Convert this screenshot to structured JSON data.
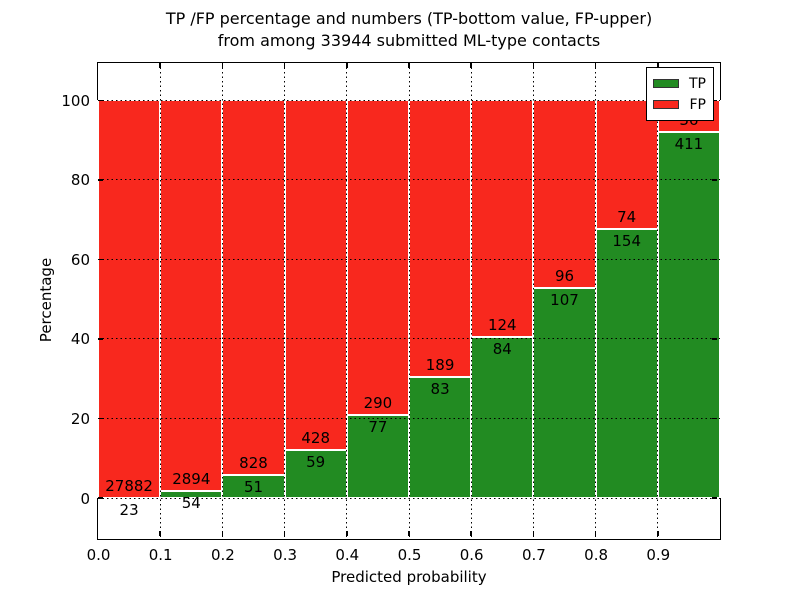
{
  "chart_data": {
    "type": "bar",
    "subtype": "stacked-percentage-histogram",
    "title_line1": "TP /FP percentage and numbers (TP-bottom value, FP-upper)",
    "title_line2": "from among 33944 submitted ML-type contacts",
    "xlabel": "Predicted probability",
    "ylabel": "Percentage",
    "total_submitted": 33944,
    "bin_width": 0.1,
    "categories": [
      0.0,
      0.1,
      0.2,
      0.3,
      0.4,
      0.5,
      0.6,
      0.7,
      0.8,
      0.9
    ],
    "series": [
      {
        "name": "TP",
        "color": "#228b22",
        "values": [
          23,
          54,
          51,
          59,
          77,
          83,
          84,
          107,
          154,
          411
        ]
      },
      {
        "name": "FP",
        "color": "#f8281e",
        "values": [
          27882,
          2894,
          828,
          428,
          290,
          189,
          124,
          96,
          74,
          36
        ]
      }
    ],
    "tp_percent_of_bin": [
      0.08,
      1.83,
      5.8,
      12.11,
      20.98,
      30.51,
      40.38,
      52.71,
      67.54,
      91.95
    ],
    "bar_total_height_percent": 100,
    "xticks": [
      "0.0",
      "0.1",
      "0.2",
      "0.3",
      "0.4",
      "0.5",
      "0.6",
      "0.7",
      "0.8",
      "0.9"
    ],
    "yticks": [
      0,
      20,
      40,
      60,
      80,
      100
    ],
    "xlim": [
      0.0,
      1.0
    ],
    "ylim_display": [
      -10.3,
      109.4
    ],
    "grid": true,
    "grid_style": "dotted",
    "legend": {
      "position": "upper right",
      "entries": [
        {
          "label": "TP",
          "color": "#228b22"
        },
        {
          "label": "FP",
          "color": "#f8281e"
        }
      ]
    }
  }
}
